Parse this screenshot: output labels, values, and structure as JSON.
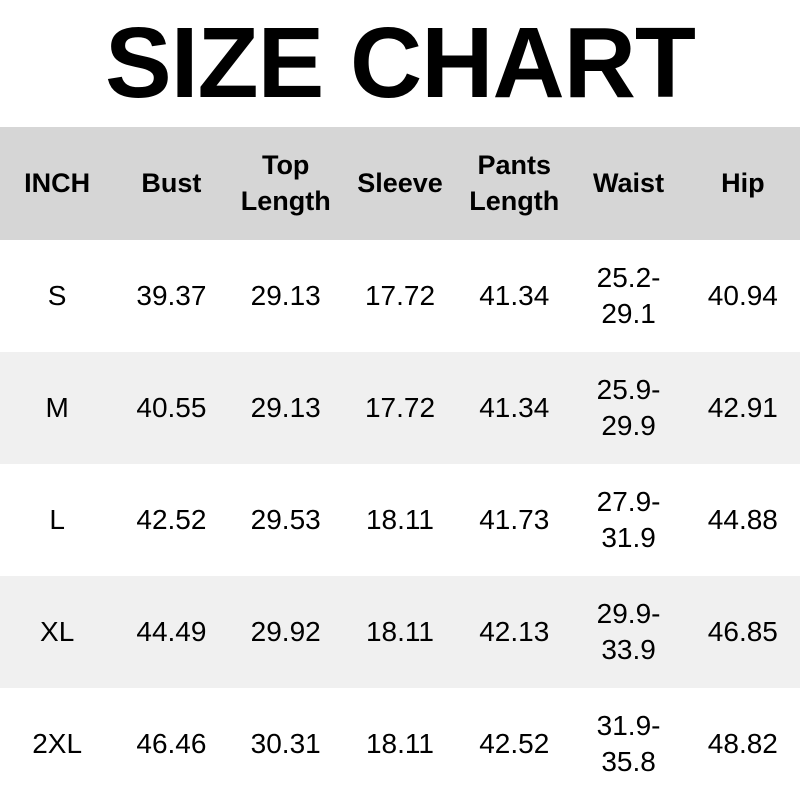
{
  "title": "SIZE CHART",
  "colors": {
    "header_bg": "#d6d6d6",
    "stripe_bg": "#f0f0f0",
    "text": "#000000"
  },
  "table": {
    "unit": "INCH",
    "columns": [
      "INCH",
      "Bust",
      "Top Length",
      "Sleeve",
      "Pants Length",
      "Waist",
      "Hip"
    ],
    "rows": [
      [
        "S",
        "39.37",
        "29.13",
        "17.72",
        "41.34",
        "25.2-\n29.1",
        "40.94"
      ],
      [
        "M",
        "40.55",
        "29.13",
        "17.72",
        "41.34",
        "25.9-\n29.9",
        "42.91"
      ],
      [
        "L",
        "42.52",
        "29.53",
        "18.11",
        "41.73",
        "27.9-\n31.9",
        "44.88"
      ],
      [
        "XL",
        "44.49",
        "29.92",
        "18.11",
        "42.13",
        "29.9-\n33.9",
        "46.85"
      ],
      [
        "2XL",
        "46.46",
        "30.31",
        "18.11",
        "42.52",
        "31.9-\n35.8",
        "48.82"
      ]
    ]
  }
}
